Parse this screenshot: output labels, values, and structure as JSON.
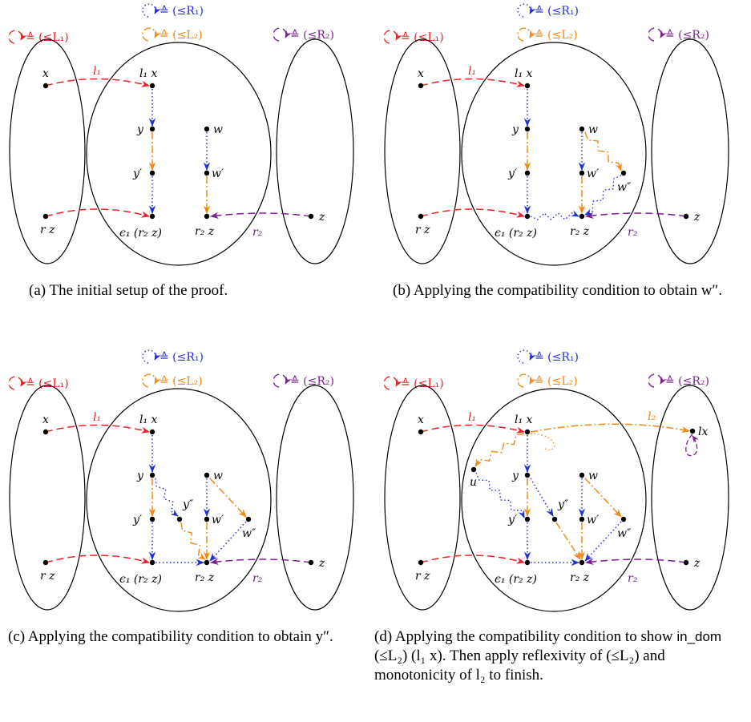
{
  "colors": {
    "red": "#e8232a",
    "blue": "#2230d8",
    "orange": "#ef8a17",
    "purple": "#7a1f8f",
    "black": "#000000"
  },
  "legend": {
    "red": "≙ (≤L₁)",
    "blue": "≙ (≤R₁)",
    "orange": "≙ (≤L₂)",
    "purple": "≙ (≤R₂)"
  },
  "labels": {
    "x": "x",
    "l1x": "l₁ x",
    "y": "y",
    "yp": "y′",
    "ypp": "y″",
    "w": "w",
    "wp": "w′",
    "wpp": "w″",
    "rz": "r z",
    "eps": "ϵ₁ (r₂ z)",
    "r2z": "r₂ z",
    "z": "z",
    "u": "u",
    "lx": "lx",
    "arrow_l1": "l₁",
    "arrow_r2": "r₂",
    "arrow_l2": "l₂"
  },
  "captions": {
    "a": "(a) The initial setup of the proof.",
    "b": "(b) Applying the compatibility condition to obtain w″.",
    "c": "(c) Applying the compatibility condition to obtain y″.",
    "d_part1": "(d) Applying the compatibility condition to show",
    "d_code": "in_dom",
    "d_part2": "(≤L₂) (l₁ x). Then apply reflexivity of (≤L₂) and monotonicity of l₂ to finish."
  }
}
